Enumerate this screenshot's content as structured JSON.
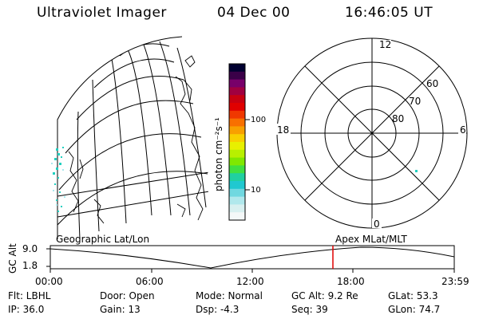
{
  "header": {
    "title": "Ultraviolet Imager",
    "date": "04 Dec 00",
    "time": "16:46:05 UT"
  },
  "colorbar": {
    "unit_label": "photon cm⁻²s⁻¹",
    "ticks": [
      "100",
      "10"
    ],
    "colors": [
      "#000030",
      "#3a0048",
      "#78006a",
      "#a00040",
      "#c80010",
      "#e00000",
      "#f03800",
      "#f87000",
      "#f8a000",
      "#f8d000",
      "#e8f000",
      "#b8f000",
      "#80e800",
      "#40e040",
      "#20d0a0",
      "#20c8d0",
      "#70d8e0",
      "#b0e8ec",
      "#d8f0f0",
      "#f4f8f8"
    ]
  },
  "polar_plot": {
    "mlt_labels": {
      "top": "12",
      "left": "18",
      "right": "6",
      "bottom": "0"
    },
    "lat_labels": [
      "60",
      "70",
      "80"
    ]
  },
  "timeline": {
    "left_label": "Geographic Lat/Lon",
    "right_label": "Apex MLat/MLT",
    "axis_title": "GC Alt",
    "y_ticks": [
      "9.0",
      "1.8"
    ],
    "x_ticks": [
      "00:00",
      "06:00",
      "12:00",
      "18:00",
      "23:59"
    ],
    "marker_color": "#e00000"
  },
  "info": {
    "flt": "Flt: LBHL",
    "ip": "IP: 36.0",
    "door": "Door: Open",
    "gain": "Gain: 13",
    "mode": "Mode: Normal",
    "dsp": "Dsp:   -4.3",
    "gcalt": "GC Alt: 9.2 Re",
    "seq": "Seq: 39",
    "glat": "GLat:  53.3",
    "glon": "GLon:  74.7"
  }
}
